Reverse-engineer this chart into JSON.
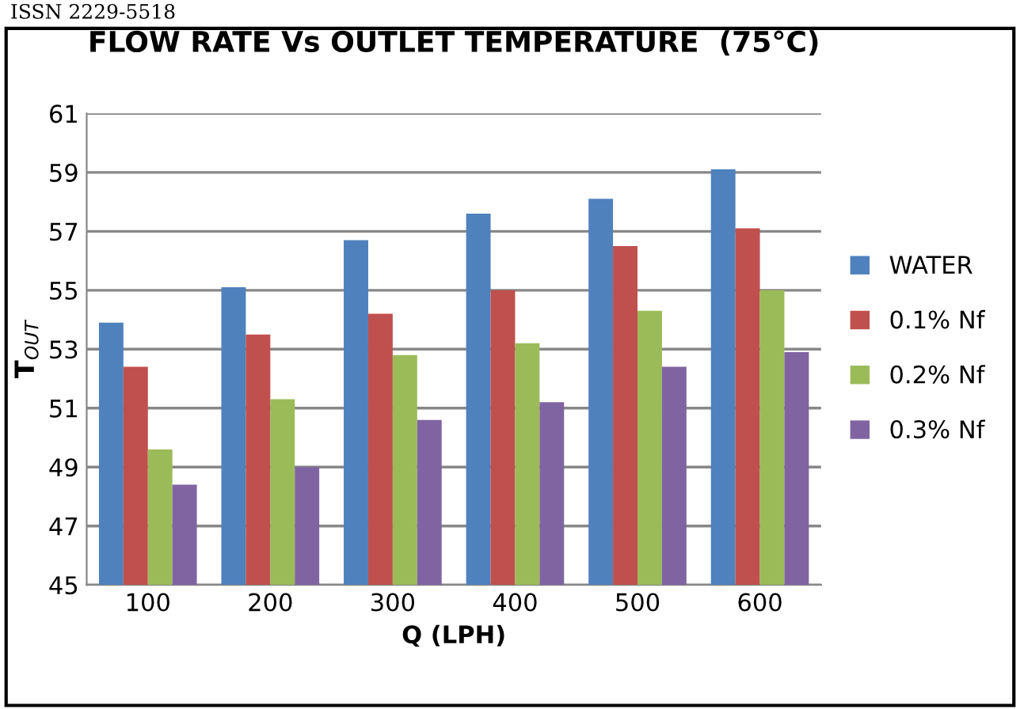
{
  "chart_data": {
    "type": "bar",
    "title": "FLOW RATE Vs OUTLET TEMPERATURE  (75°C)",
    "xlabel": "Q (LPH)",
    "ylabel": "T$_{OUT}$",
    "annotations": [
      "ISSN 2229-5518"
    ],
    "categories": [
      "100",
      "200",
      "300",
      "400",
      "500",
      "600"
    ],
    "series": [
      {
        "name": "WATER",
        "color": "#4f81bd",
        "values": [
          53.9,
          55.1,
          56.7,
          57.6,
          58.1,
          59.1
        ]
      },
      {
        "name": "0.1% Nf",
        "color": "#c0504d",
        "values": [
          52.4,
          53.5,
          54.2,
          55.0,
          56.5,
          57.1
        ]
      },
      {
        "name": "0.2% Nf",
        "color": "#9bbb59",
        "values": [
          49.6,
          51.3,
          52.8,
          53.2,
          54.3,
          55.0
        ]
      },
      {
        "name": "0.3% Nf",
        "color": "#8064a2",
        "values": [
          48.4,
          49.0,
          50.6,
          51.2,
          52.4,
          52.9
        ]
      }
    ],
    "ylim": [
      45,
      61
    ],
    "yticks": [
      45,
      47,
      49,
      51,
      53,
      55,
      57,
      59,
      61
    ],
    "grid": "y",
    "legend": "right"
  }
}
